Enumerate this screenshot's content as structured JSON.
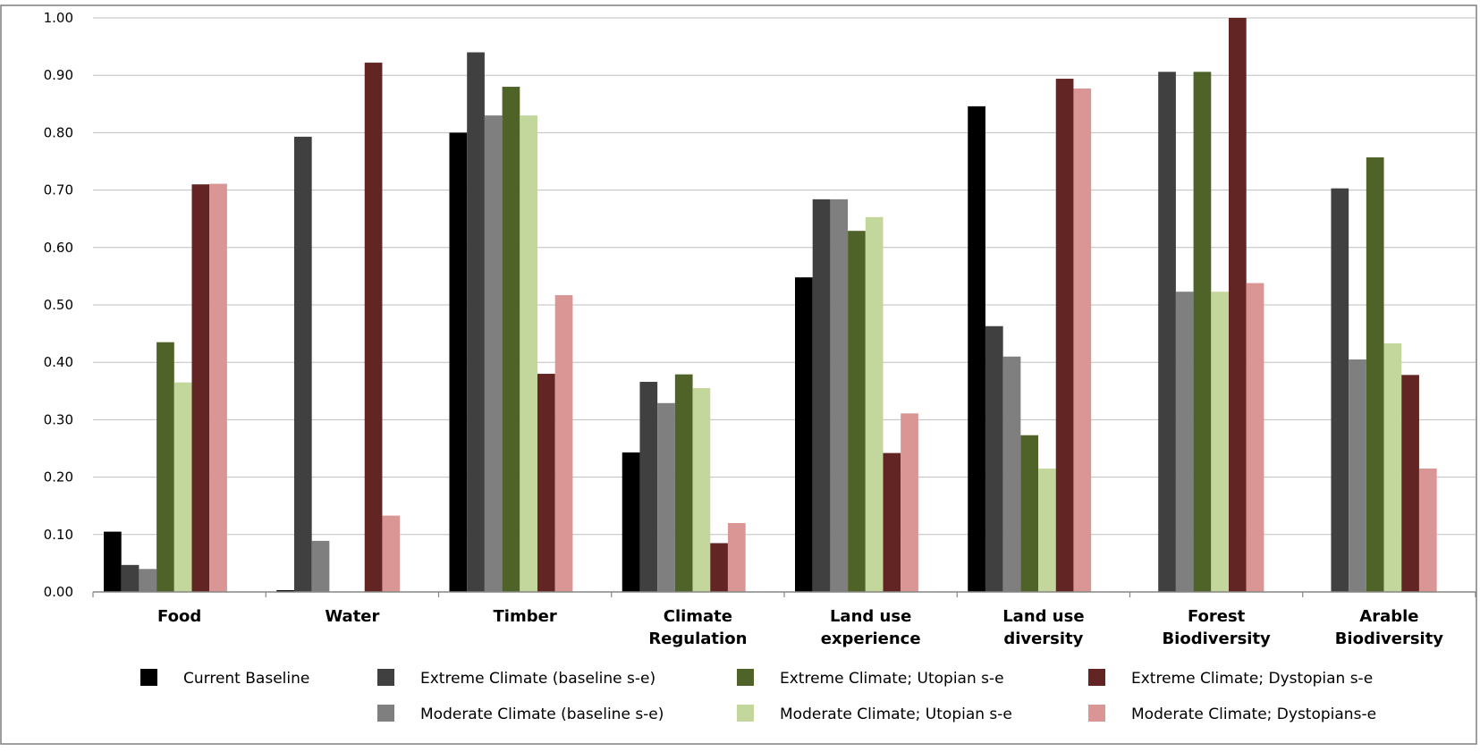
{
  "chart_data": {
    "type": "bar",
    "title": "",
    "xlabel": "",
    "ylabel": "",
    "ylim": [
      0,
      1
    ],
    "y_ticks": [
      "0.00",
      "0.10",
      "0.20",
      "0.30",
      "0.40",
      "0.50",
      "0.60",
      "0.70",
      "0.80",
      "0.90",
      "1.00"
    ],
    "grid": "horizontal",
    "legend_position": "bottom",
    "categories": [
      [
        "Food"
      ],
      [
        "Water"
      ],
      [
        "Timber"
      ],
      [
        "Climate",
        "Regulation"
      ],
      [
        "Land use",
        "experience"
      ],
      [
        "Land use",
        "diversity"
      ],
      [
        "Forest",
        "Biodiversity"
      ],
      [
        "Arable",
        "Biodiversity"
      ]
    ],
    "series": [
      {
        "name": "Current Baseline",
        "color": "#000000",
        "values": [
          0.105,
          0.003,
          0.8,
          0.243,
          0.548,
          0.846,
          null,
          null
        ]
      },
      {
        "name": "Extreme Climate (baseline s-e)",
        "color": "#404040",
        "values": [
          0.047,
          0.793,
          0.94,
          0.366,
          0.684,
          0.463,
          0.906,
          0.703
        ]
      },
      {
        "name": "Moderate Climate (baseline s-e)",
        "color": "#7f7f7f",
        "values": [
          0.04,
          0.089,
          0.83,
          0.329,
          0.684,
          0.41,
          0.523,
          0.405
        ]
      },
      {
        "name": "Extreme Climate; Utopian s-e",
        "color": "#4f6228",
        "values": [
          0.435,
          null,
          0.88,
          0.379,
          0.629,
          0.273,
          0.906,
          0.757
        ]
      },
      {
        "name": "Moderate Climate; Utopian s-e",
        "color": "#c3d69b",
        "values": [
          0.365,
          null,
          0.83,
          0.355,
          0.653,
          0.215,
          0.523,
          0.433
        ]
      },
      {
        "name": "Extreme Climate; Dystopian s-e",
        "color": "#632523",
        "values": [
          0.71,
          0.922,
          0.38,
          0.085,
          0.242,
          0.894,
          1.0,
          0.378
        ]
      },
      {
        "name": "Moderate Climate; Dystopians-e",
        "color": "#d99694",
        "values": [
          0.711,
          0.133,
          0.517,
          0.12,
          0.311,
          0.877,
          0.538,
          0.215
        ]
      }
    ],
    "legend_order": [
      0,
      1,
      3,
      5,
      2,
      4,
      6
    ]
  }
}
